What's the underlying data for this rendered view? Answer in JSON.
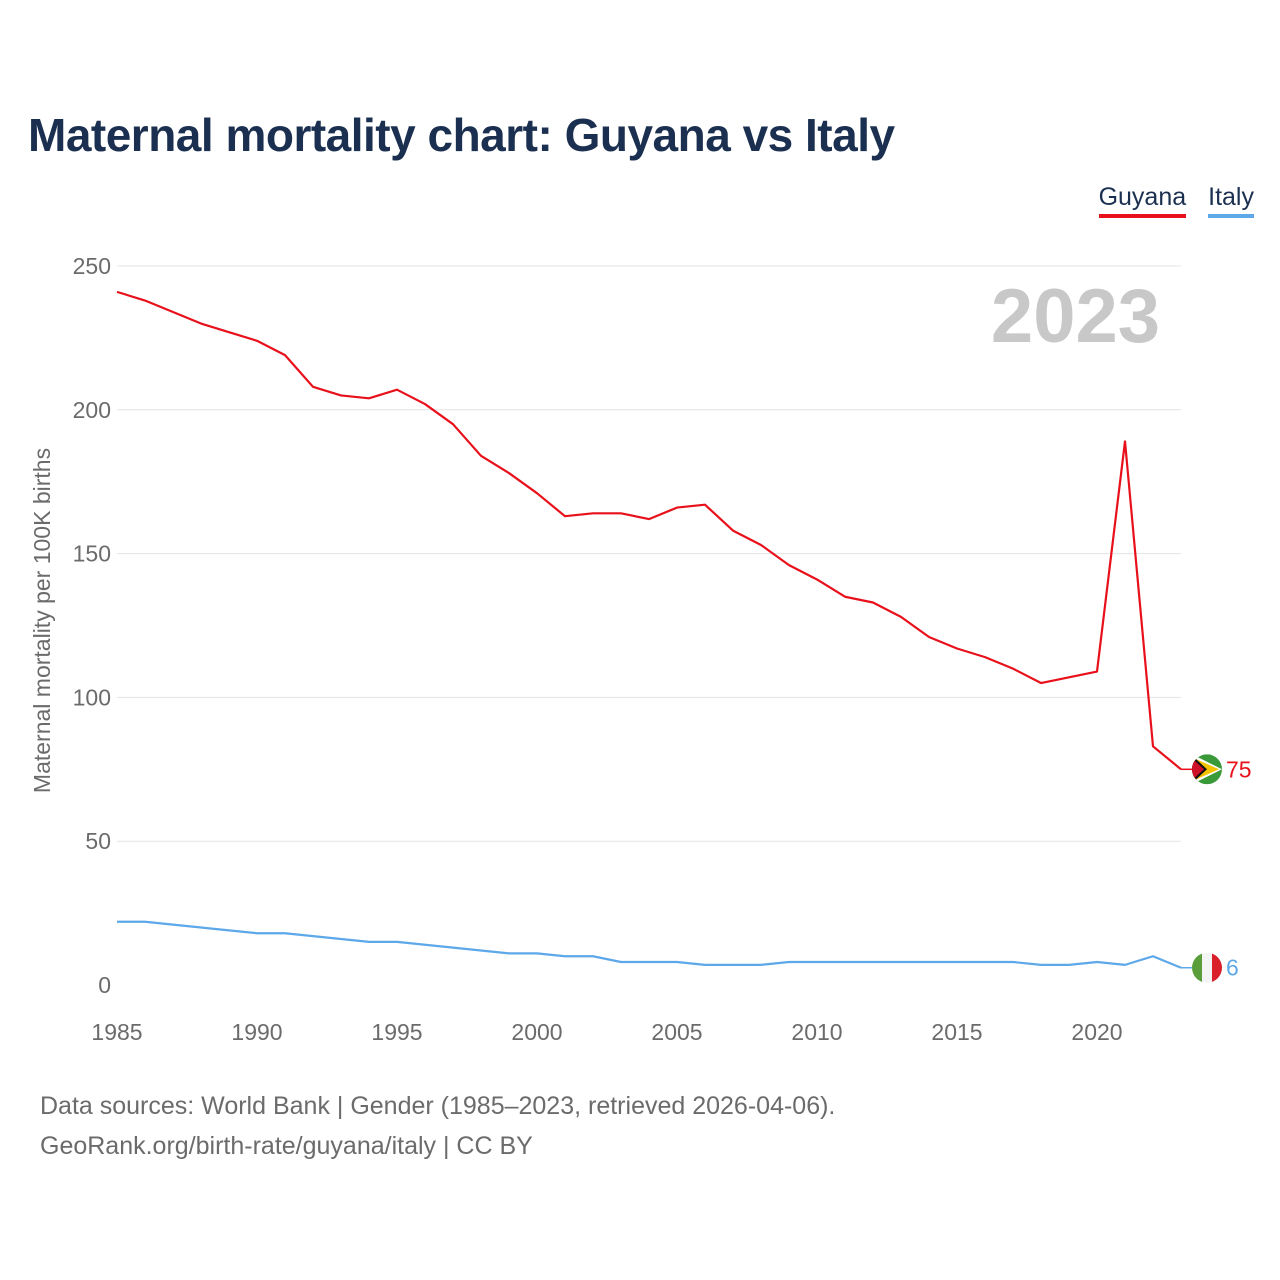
{
  "title": "Maternal mortality chart: Guyana vs Italy",
  "legend": {
    "guyana": "Guyana",
    "italy": "Italy"
  },
  "footer": {
    "sources": "Data sources: World Bank | Gender (1985–2023, retrieved 2026-04-06).",
    "credit": "GeoRank.org/birth-rate/guyana/italy | CC BY"
  },
  "chart_data": {
    "type": "line",
    "title": "Maternal mortality chart: Guyana vs Italy",
    "year_label": "2023",
    "xlabel": "",
    "ylabel": "Maternal mortality per 100K births",
    "xlim": [
      1985,
      2023
    ],
    "ylim": [
      0,
      250
    ],
    "xticks": [
      1985,
      1990,
      1995,
      2000,
      2005,
      2010,
      2015,
      2020
    ],
    "yticks": [
      0,
      50,
      100,
      150,
      200,
      250
    ],
    "grid": true,
    "x": [
      1985,
      1986,
      1987,
      1988,
      1989,
      1990,
      1991,
      1992,
      1993,
      1994,
      1995,
      1996,
      1997,
      1998,
      1999,
      2000,
      2001,
      2002,
      2003,
      2004,
      2005,
      2006,
      2007,
      2008,
      2009,
      2010,
      2011,
      2012,
      2013,
      2014,
      2015,
      2016,
      2017,
      2018,
      2019,
      2020,
      2021,
      2022,
      2023
    ],
    "series": [
      {
        "name": "Guyana",
        "color": "#e8111b",
        "end_label": "75",
        "values": [
          241,
          238,
          234,
          230,
          227,
          224,
          219,
          208,
          205,
          204,
          207,
          202,
          195,
          184,
          178,
          171,
          163,
          164,
          164,
          162,
          166,
          167,
          158,
          153,
          146,
          141,
          135,
          133,
          128,
          121,
          117,
          114,
          110,
          105,
          107,
          109,
          189,
          83,
          75
        ]
      },
      {
        "name": "Italy",
        "color": "#5da8e8",
        "end_label": "6",
        "values": [
          22,
          22,
          21,
          20,
          19,
          18,
          18,
          17,
          16,
          15,
          15,
          14,
          13,
          12,
          11,
          11,
          10,
          10,
          8,
          8,
          8,
          7,
          7,
          7,
          8,
          8,
          8,
          8,
          8,
          8,
          8,
          8,
          8,
          7,
          7,
          8,
          7,
          10,
          6
        ]
      }
    ]
  }
}
